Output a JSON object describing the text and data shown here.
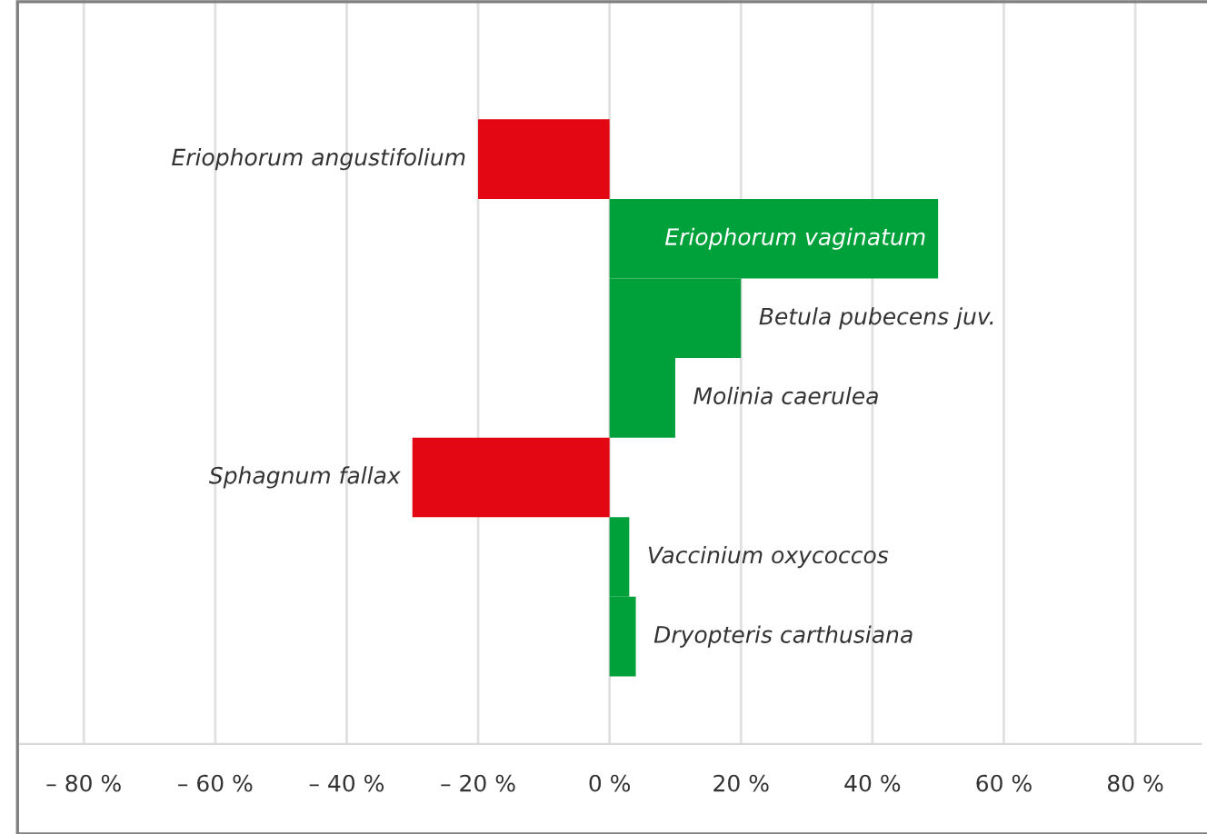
{
  "chart_data": {
    "type": "bar",
    "orientation": "horizontal",
    "categories": [
      "Eriophorum angustifolium",
      "Eriophorum vaginatum",
      "Betula pubecens juv.",
      "Molinia caerulea",
      "Sphagnum fallax",
      "Vaccinium oxycoccos",
      "Dryopteris carthusiana"
    ],
    "values": [
      -20,
      50,
      20,
      10,
      -30,
      3,
      4
    ],
    "colors": [
      "#e30613",
      "#00a03a",
      "#00a03a",
      "#00a03a",
      "#e30613",
      "#00a03a",
      "#00a03a"
    ],
    "xlim": [
      -90,
      90
    ],
    "xticks": [
      {
        "value": -80,
        "label": "– 80 %"
      },
      {
        "value": -60,
        "label": "– 60 %"
      },
      {
        "value": -40,
        "label": "– 40 %"
      },
      {
        "value": -20,
        "label": "– 20 %"
      },
      {
        "value": 0,
        "label": "0 %"
      },
      {
        "value": 20,
        "label": "20 %"
      },
      {
        "value": 40,
        "label": "40 %"
      },
      {
        "value": 60,
        "label": "60 %"
      },
      {
        "value": 80,
        "label": "80 %"
      }
    ],
    "grid": "x"
  }
}
